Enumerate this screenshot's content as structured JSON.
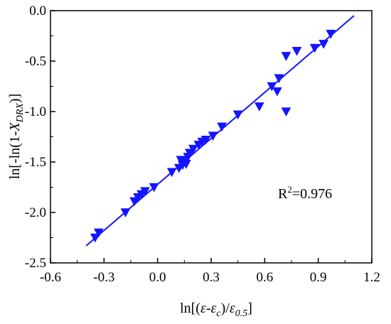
{
  "chart_data": {
    "type": "scatter",
    "xlabel": {
      "pre": "ln[(",
      "eps1": "ε",
      "dash": "-",
      "eps2": "ε",
      "sub_c": "c",
      "mid": ")/",
      "eps3": "ε",
      "sub_05": "0.5",
      "post": "]"
    },
    "ylabel": {
      "pre": "ln[-ln(1-",
      "X": "X",
      "sub": "DRX",
      "post": ")]"
    },
    "xlim": [
      -0.6,
      1.2
    ],
    "ylim": [
      -2.5,
      0.0
    ],
    "xticks": [
      -0.6,
      -0.3,
      0.0,
      0.3,
      0.6,
      0.9,
      1.2
    ],
    "xtick_labels": [
      "-0.6",
      "-0.3",
      "0.0",
      "0.3",
      "0.6",
      "0.9",
      "1.2"
    ],
    "yticks": [
      0.0,
      -0.5,
      -1.0,
      -1.5,
      -2.0,
      -2.5
    ],
    "ytick_labels": [
      "0.0",
      "-0.5",
      "-1.0",
      "-1.5",
      "-2.0",
      "-2.5"
    ],
    "grid": false,
    "annotation": {
      "base": "R",
      "sup": "2",
      "rest": "=0.976"
    },
    "series": [
      {
        "marker": "triangle-down",
        "color": "#1414ff",
        "x": [
          -0.35,
          -0.33,
          -0.18,
          -0.13,
          -0.11,
          -0.09,
          -0.07,
          -0.02,
          0.08,
          0.12,
          0.13,
          0.14,
          0.15,
          0.16,
          0.17,
          0.18,
          0.2,
          0.23,
          0.25,
          0.27,
          0.31,
          0.36,
          0.45,
          0.57,
          0.64,
          0.67,
          0.68,
          0.72,
          0.72,
          0.78,
          0.88,
          0.93,
          0.97
        ],
        "y": [
          -2.25,
          -2.2,
          -2.0,
          -1.89,
          -1.85,
          -1.82,
          -1.79,
          -1.75,
          -1.6,
          -1.56,
          -1.48,
          -1.53,
          -1.49,
          -1.52,
          -1.45,
          -1.41,
          -1.37,
          -1.33,
          -1.3,
          -1.28,
          -1.24,
          -1.15,
          -1.03,
          -0.95,
          -0.75,
          -0.8,
          -0.67,
          -0.45,
          -1.0,
          -0.4,
          -0.37,
          -0.33,
          -0.23
        ]
      }
    ],
    "fit_line": {
      "color": "#1414ff",
      "x": [
        -0.4,
        1.1
      ],
      "y": [
        -2.33,
        -0.05
      ]
    }
  }
}
